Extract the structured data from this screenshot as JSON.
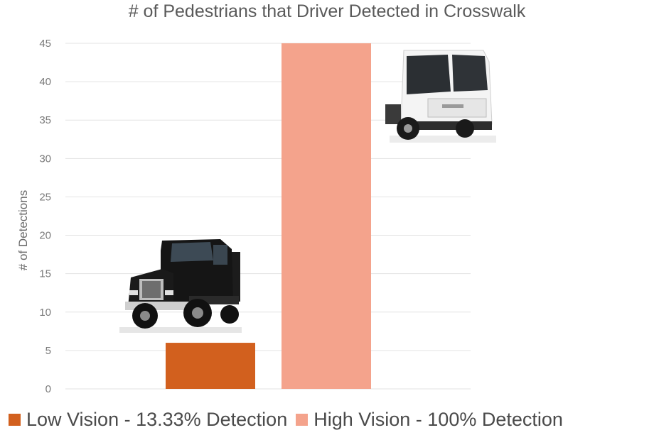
{
  "chart_data": {
    "type": "bar",
    "title": "# of Pedestrians that Driver Detected in Crosswalk",
    "xlabel": "",
    "ylabel": "# of Detections",
    "ylim": [
      0,
      45
    ],
    "yticks": [
      0,
      5,
      10,
      15,
      20,
      25,
      30,
      35,
      40,
      45
    ],
    "grid": true,
    "legend_position": "bottom",
    "categories": [
      "Low Vision - 13.33% Detection",
      "High Vision - 100% Detection"
    ],
    "values": [
      6,
      45
    ],
    "colors": [
      "#d2601e",
      "#f4a38c"
    ]
  },
  "images": [
    "black-dump-truck",
    "white-refuse-truck"
  ]
}
